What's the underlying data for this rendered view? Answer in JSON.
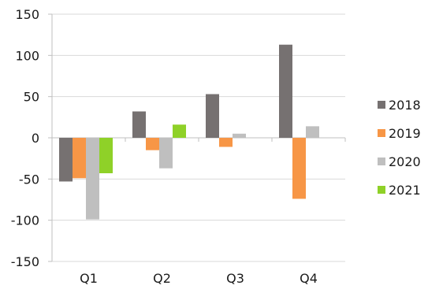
{
  "chart_data": {
    "type": "bar",
    "title": "",
    "xlabel": "",
    "ylabel": "",
    "categories": [
      "Q1",
      "Q2",
      "Q3",
      "Q4"
    ],
    "ylim": [
      -150,
      150
    ],
    "y_ticks": [
      150,
      100,
      50,
      0,
      -50,
      -100,
      -150
    ],
    "y_tick_labels": [
      "150",
      "100",
      "50",
      "0",
      "-50",
      "-100",
      "-150"
    ],
    "grid": "horizontal",
    "legend_position": "right",
    "series": [
      {
        "name": "2018",
        "color": "#767171",
        "values": [
          -53,
          32,
          53,
          113
        ]
      },
      {
        "name": "2019",
        "color": "#F79646",
        "values": [
          -49,
          -15,
          -11,
          -74
        ]
      },
      {
        "name": "2020",
        "color": "#BFBFBF",
        "values": [
          -99,
          -37,
          5,
          14
        ]
      },
      {
        "name": "2021",
        "color": "#8FD128",
        "values": [
          -43,
          16,
          null,
          null
        ]
      }
    ]
  }
}
